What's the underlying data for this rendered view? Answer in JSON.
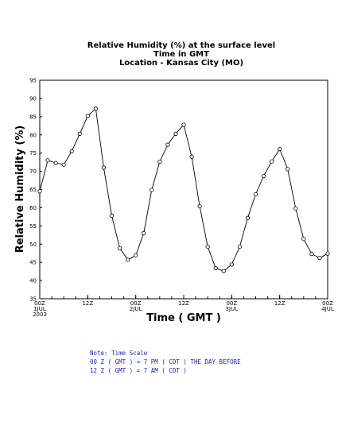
{
  "chart_data": {
    "type": "line",
    "title_lines": [
      "Relative Humidity (%) at the surface level",
      "Time in GMT",
      "Location - Kansas City (MO)"
    ],
    "xlabel": "Time ( GMT )",
    "ylabel": "Relative Humidity (%)",
    "ylim": [
      35,
      95
    ],
    "yticks": [
      35,
      40,
      45,
      50,
      55,
      60,
      65,
      70,
      75,
      80,
      85,
      90,
      95
    ],
    "xlim_hours": [
      0,
      72
    ],
    "xticks": [
      {
        "hour": 0,
        "lines": [
          "00Z",
          "1JUL",
          "2003"
        ]
      },
      {
        "hour": 12,
        "lines": [
          "12Z"
        ]
      },
      {
        "hour": 24,
        "lines": [
          "00Z",
          "2JUL"
        ]
      },
      {
        "hour": 36,
        "lines": [
          "12Z"
        ]
      },
      {
        "hour": 48,
        "lines": [
          "00Z",
          "3JUL"
        ]
      },
      {
        "hour": 60,
        "lines": [
          "12Z"
        ]
      },
      {
        "hour": 72,
        "lines": [
          "00Z",
          "4JUL"
        ]
      }
    ],
    "grid": false,
    "series": [
      {
        "color": "#000000",
        "marker": "open-circle",
        "x_hours": [
          0,
          2,
          4,
          6,
          8,
          10,
          12,
          14,
          16,
          18,
          20,
          22,
          24,
          26,
          28,
          30,
          32,
          34,
          36,
          38,
          40,
          42,
          44,
          46,
          48,
          50,
          52,
          54,
          56,
          58,
          60,
          62,
          64,
          66,
          68,
          70,
          72
        ],
        "values": [
          64.5,
          73,
          72.3,
          71.8,
          75.5,
          80.3,
          85.2,
          87.2,
          71,
          57.8,
          48.9,
          45.7,
          46.9,
          53,
          64.9,
          72.6,
          77.3,
          80.3,
          82.8,
          74,
          60.4,
          49.3,
          43.4,
          42.6,
          44.4,
          49.3,
          57.2,
          63.7,
          68.7,
          72.7,
          76.1,
          70.6,
          59.8,
          51.4,
          47.3,
          46.2,
          47.4
        ]
      }
    ]
  },
  "note": {
    "lines": [
      "Note: Time Scale",
      "00 Z ( GMT ) = 7 PM ( CDT ) THE DAY BEFORE",
      "12 Z ( GMT ) = 7 AM ( CDT )"
    ]
  }
}
